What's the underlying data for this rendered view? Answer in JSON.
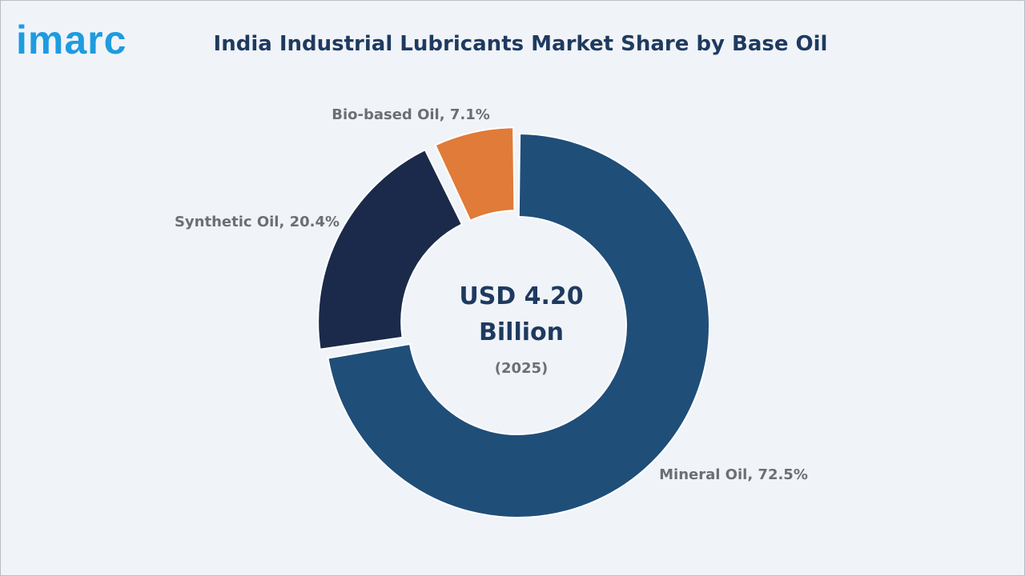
{
  "brand": {
    "logo_text": "imarc",
    "colors": {
      "logo": "#1f9be0"
    }
  },
  "chart_data": {
    "type": "pie",
    "title": "India Industrial Lubricants Market Share by Base Oil",
    "center_text": {
      "value_line1": "USD 4.20",
      "value_line2": "Billion",
      "year": "(2025)"
    },
    "slices": [
      {
        "label": "Mineral Oil, 72.5%",
        "value": 72.5,
        "color": "#1f4e79"
      },
      {
        "label": "Synthetic Oil, 20.4%",
        "value": 20.4,
        "color": "#1b2a4a"
      },
      {
        "label": "Bio-based Oil, 7.1%",
        "value": 7.1,
        "color": "#e07b39"
      }
    ]
  }
}
